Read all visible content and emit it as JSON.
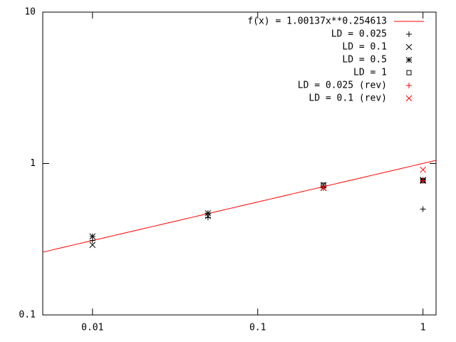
{
  "chart_data": {
    "type": "scatter",
    "x": [
      0.01,
      0.05,
      0.25,
      1
    ],
    "xlim": [
      0.005,
      1.2
    ],
    "ylim": [
      0.1,
      10
    ],
    "xticks": [
      0.01,
      0.1,
      1
    ],
    "yticks": [
      0.1,
      1,
      10
    ],
    "log_x": true,
    "log_y": true,
    "legend": "top-right",
    "fit": {
      "name": "f(x) = 1.00137x**0.254613",
      "a": 1.00137,
      "b": 0.254613,
      "color": "#ff0000"
    },
    "series": [
      {
        "name": "LD = 0.025",
        "color": "#000000",
        "marker": "plus",
        "values": [
          0.31,
          0.44,
          0.71,
          0.5
        ]
      },
      {
        "name": "LD = 0.1",
        "color": "#000000",
        "marker": "cross",
        "values": [
          0.29,
          0.45,
          0.72,
          0.77
        ]
      },
      {
        "name": "LD = 0.5",
        "color": "#000000",
        "marker": "star",
        "values": [
          0.33,
          0.47,
          0.69,
          0.78
        ]
      },
      {
        "name": "LD = 1",
        "color": "#000000",
        "marker": "square",
        "values": [
          null,
          null,
          0.72,
          0.77
        ]
      },
      {
        "name": "LD = 0.025 (rev)",
        "color": "#ff0000",
        "marker": "plus",
        "values": [
          null,
          null,
          0.7,
          0.77
        ]
      },
      {
        "name": "LD = 0.1 (rev)",
        "color": "#ff0000",
        "marker": "cross",
        "values": [
          null,
          null,
          0.69,
          0.91
        ]
      }
    ]
  }
}
